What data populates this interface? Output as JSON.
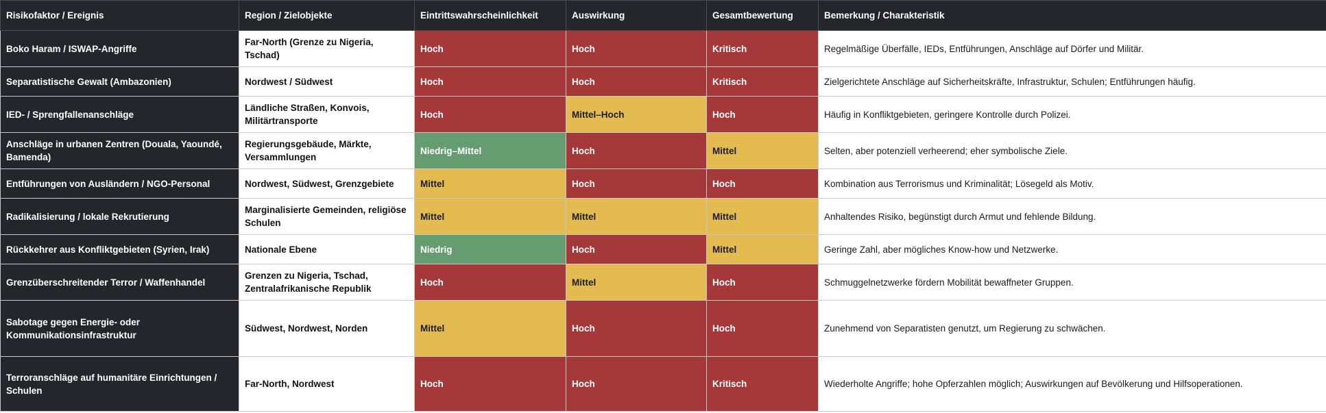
{
  "colors": {
    "header_bg": "#24262b",
    "header_text": "#ffffff",
    "red": "#a5393a",
    "yellow": "#e4bb51",
    "green": "#669d70",
    "border": "#c9c9c9"
  },
  "headers": {
    "factor": "Risikofaktor / Ereignis",
    "region": "Region / Zielobjekte",
    "probability": "Eintrittswahrscheinlichkeit",
    "impact": "Auswirkung",
    "overall": "Gesamtbewertung",
    "note": "Bemerkung / Charakteristik"
  },
  "rows": [
    {
      "factor": "Boko Haram / ISWAP-Angriffe",
      "region": "Far-North (Grenze zu Nigeria, Tschad)",
      "probability": "Hoch",
      "impact": "Hoch",
      "overall": "Kritisch",
      "note": "Regelmäßige Überfälle, IEDs, Entführungen, Anschläge auf Dörfer und Militär."
    },
    {
      "factor": "Separatistische Gewalt (Ambazonien)",
      "region": "Nordwest / Südwest",
      "probability": "Hoch",
      "impact": "Hoch",
      "overall": "Kritisch",
      "note": "Zielgerichtete Anschläge auf Sicherheitskräfte, Infrastruktur, Schulen; Entführungen häufig."
    },
    {
      "factor": "IED- / Sprengfallenanschläge",
      "region": "Ländliche Straßen, Konvois, Militärtransporte",
      "probability": "Hoch",
      "impact": "Mittel–Hoch",
      "overall": "Hoch",
      "note": "Häufig in Konfliktgebieten, geringere Kontrolle durch Polizei."
    },
    {
      "factor": "Anschläge in urbanen Zentren (Douala, Yaoundé, Bamenda)",
      "region": "Regierungsgebäude, Märkte, Versammlungen",
      "probability": "Niedrig–Mittel",
      "impact": "Hoch",
      "overall": "Mittel",
      "note": "Selten, aber potenziell verheerend; eher symbolische Ziele."
    },
    {
      "factor": "Entführungen von Ausländern / NGO-Personal",
      "region": "Nordwest, Südwest, Grenzgebiete",
      "probability": "Mittel",
      "impact": "Hoch",
      "overall": "Hoch",
      "note": "Kombination aus Terrorismus und Kriminalität; Lösegeld als Motiv."
    },
    {
      "factor": "Radikalisierung / lokale Rekrutierung",
      "region": "Marginalisierte Gemeinden, religiöse Schulen",
      "probability": "Mittel",
      "impact": "Mittel",
      "overall": "Mittel",
      "note": "Anhaltendes Risiko, begünstigt durch Armut und fehlende Bildung."
    },
    {
      "factor": "Rückkehrer aus Konfliktgebieten (Syrien, Irak)",
      "region": "Nationale Ebene",
      "probability": "Niedrig",
      "impact": "Hoch",
      "overall": "Mittel",
      "note": "Geringe Zahl, aber mögliches Know-how und Netzwerke."
    },
    {
      "factor": "Grenzüberschreitender Terror / Waffenhandel",
      "region": "Grenzen zu Nigeria, Tschad, Zentralafrikanische Republik",
      "probability": "Hoch",
      "impact": "Mittel",
      "overall": "Hoch",
      "note": "Schmuggelnetzwerke fördern Mobilität bewaffneter Gruppen."
    },
    {
      "factor": "Sabotage gegen Energie- oder Kommunikationsinfrastruktur",
      "region": "Südwest, Nordwest, Norden",
      "probability": "Mittel",
      "impact": "Hoch",
      "overall": "Hoch",
      "note": "Zunehmend von Separatisten genutzt, um Regierung zu schwächen."
    },
    {
      "factor": "Terroranschläge auf humanitäre Einrichtungen / Schulen",
      "region": "Far-North, Nordwest",
      "probability": "Hoch",
      "impact": "Hoch",
      "overall": "Kritisch",
      "note": "Wiederholte Angriffe; hohe Opferzahlen möglich; Auswirkungen auf Bevölkerung und Hilfsoperationen."
    }
  ]
}
